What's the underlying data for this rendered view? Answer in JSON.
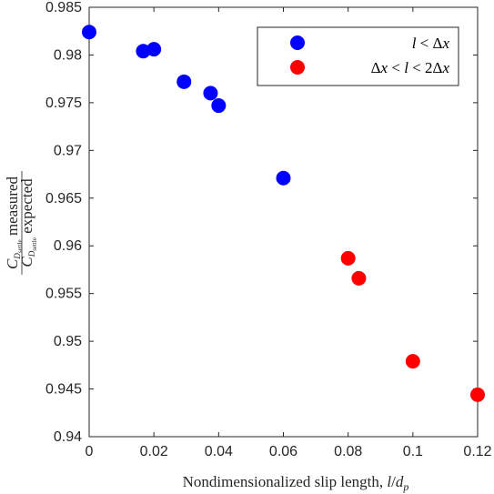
{
  "chart_data": {
    "type": "scatter",
    "xlabel": "Nondimensionalized slip length, l/d_p",
    "ylabel": "C_D_settle measured / C_D_settle expected",
    "xlim": [
      0,
      0.12
    ],
    "ylim": [
      0.94,
      0.985
    ],
    "x_ticks": [
      "0",
      "0.02",
      "0.04",
      "0.06",
      "0.08",
      "0.1",
      "0.12"
    ],
    "y_ticks": [
      "0.94",
      "0.945",
      "0.95",
      "0.955",
      "0.96",
      "0.965",
      "0.97",
      "0.975",
      "0.98",
      "0.985"
    ],
    "legend_position": "top-right",
    "grid": false,
    "series": [
      {
        "name": "l < Δx",
        "color": "#0000ff",
        "points": [
          {
            "x": 0.0,
            "y": 0.9824
          },
          {
            "x": 0.0167,
            "y": 0.9804
          },
          {
            "x": 0.02,
            "y": 0.9806
          },
          {
            "x": 0.0293,
            "y": 0.9772
          },
          {
            "x": 0.0375,
            "y": 0.976
          },
          {
            "x": 0.04,
            "y": 0.9747
          },
          {
            "x": 0.06,
            "y": 0.9671
          }
        ]
      },
      {
        "name": "Δx < l < 2Δx",
        "color": "#ff0000",
        "points": [
          {
            "x": 0.08,
            "y": 0.9587
          },
          {
            "x": 0.0833,
            "y": 0.9566
          },
          {
            "x": 0.1,
            "y": 0.9479
          },
          {
            "x": 0.12,
            "y": 0.9444
          }
        ]
      }
    ]
  }
}
